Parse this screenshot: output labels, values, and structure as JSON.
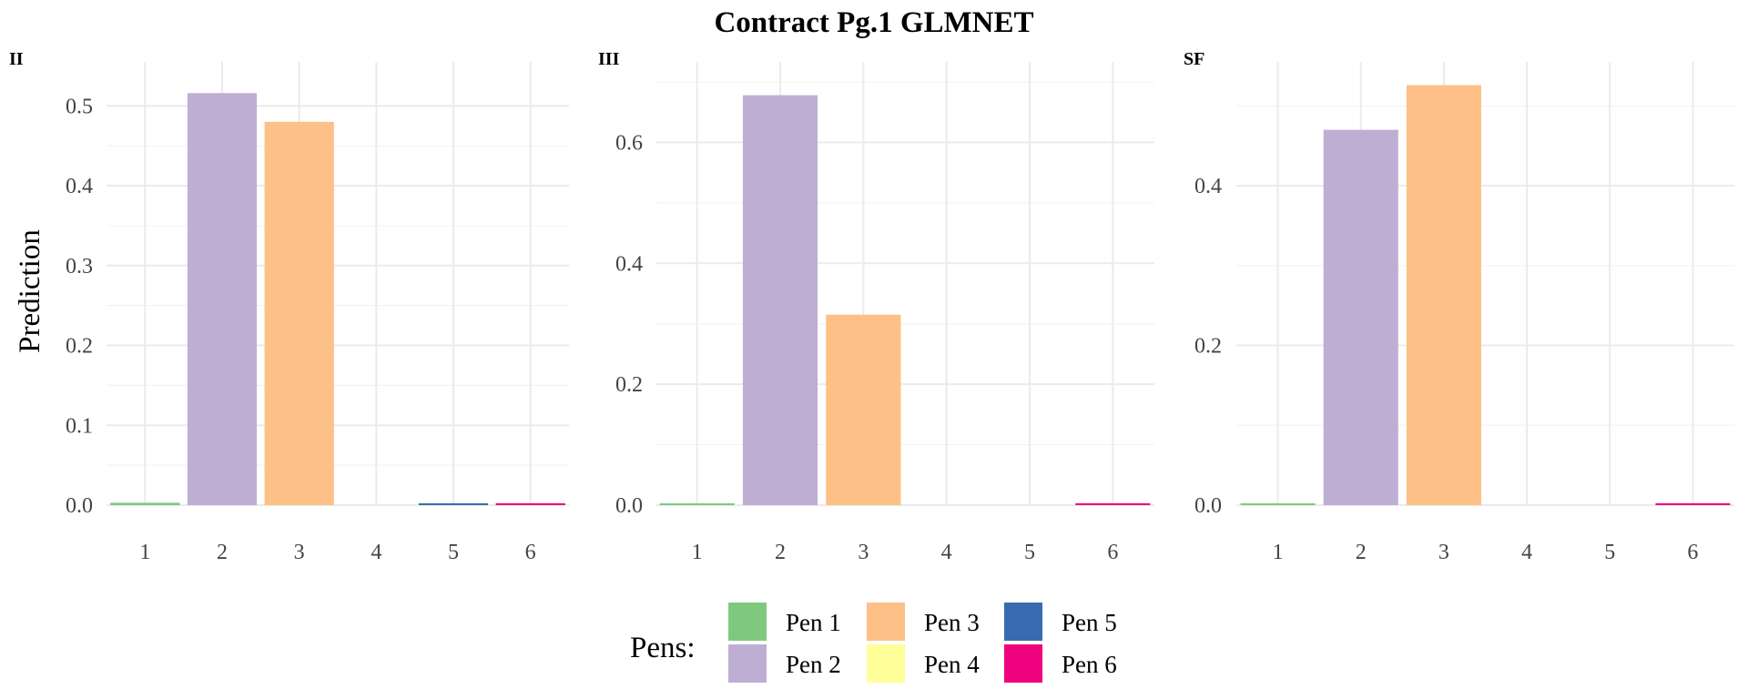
{
  "chart_data": {
    "type": "bar",
    "title": "Contract Pg.1 GLMNET",
    "ylabel": "Prediction",
    "categories": [
      "1",
      "2",
      "3",
      "4",
      "5",
      "6"
    ],
    "legend": {
      "title": "Pens:",
      "placement": "bottom",
      "entries": [
        {
          "name": "Pen 1",
          "color": "#7fc97f"
        },
        {
          "name": "Pen 2",
          "color": "#beaed4"
        },
        {
          "name": "Pen 3",
          "color": "#fdc086"
        },
        {
          "name": "Pen 4",
          "color": "#ffff99"
        },
        {
          "name": "Pen 5",
          "color": "#386cb0"
        },
        {
          "name": "Pen 6",
          "color": "#f0027f"
        }
      ]
    },
    "panels": [
      {
        "label": "II",
        "ylim": [
          0,
          0.53
        ],
        "yticks": [
          0.0,
          0.1,
          0.2,
          0.3,
          0.4,
          0.5
        ],
        "ytick_labels": [
          "0.0",
          "0.1",
          "0.2",
          "0.3",
          "0.4",
          "0.5"
        ],
        "values": [
          0.003,
          0.516,
          0.48,
          0.0,
          0.001,
          0.001
        ]
      },
      {
        "label": "III",
        "ylim": [
          0,
          0.7
        ],
        "yticks": [
          0.0,
          0.2,
          0.4,
          0.6
        ],
        "ytick_labels": [
          "0.0",
          "0.2",
          "0.4",
          "0.6"
        ],
        "values": [
          0.002,
          0.678,
          0.315,
          0.0,
          0.0,
          0.001
        ]
      },
      {
        "label": "SF",
        "ylim": [
          0,
          0.53
        ],
        "yticks": [
          0.0,
          0.2,
          0.4
        ],
        "ytick_labels": [
          "0.0",
          "0.2",
          "0.4"
        ],
        "values": [
          0.002,
          0.47,
          0.526,
          0.0,
          0.0,
          0.001
        ]
      }
    ],
    "grid": true
  }
}
